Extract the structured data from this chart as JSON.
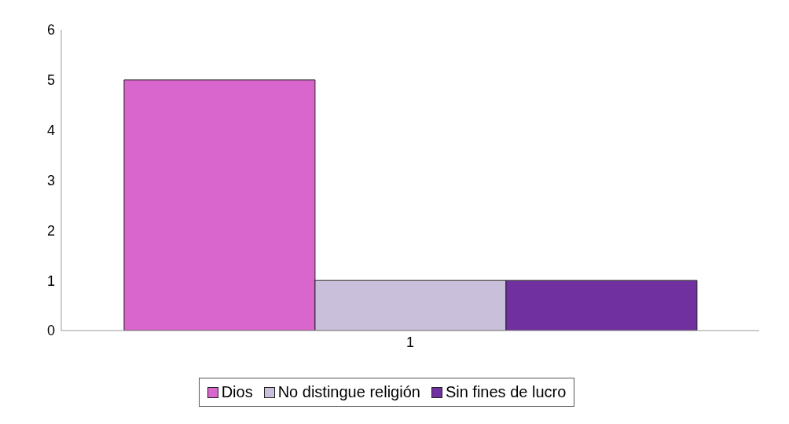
{
  "chart_data": {
    "type": "bar",
    "categories": [
      "1"
    ],
    "series": [
      {
        "name": "Dios",
        "color": "#d966cc",
        "values": [
          5
        ]
      },
      {
        "name": "No distingue religión",
        "color": "#c9bfdb",
        "values": [
          1
        ]
      },
      {
        "name": "Sin fines de lucro",
        "color": "#7030a0",
        "values": [
          1
        ]
      }
    ],
    "ylim": [
      0,
      6
    ],
    "yticks": [
      0,
      1,
      2,
      3,
      4,
      5,
      6
    ],
    "grid": false,
    "legend": "bottom"
  }
}
